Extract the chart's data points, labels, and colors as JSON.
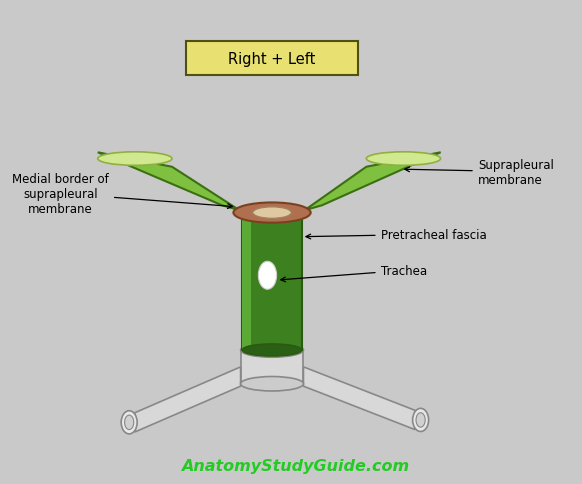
{
  "bg_color": "#c9c9c9",
  "title_box_color": "#e8e070",
  "title_text": "Right + Left",
  "trachea_green": "#3d8020",
  "trachea_light_green": "#5aaa35",
  "trachea_dark_green": "#2a5a10",
  "membrane_green": "#80c040",
  "membrane_light_green": "#a8d860",
  "membrane_top_light": "#d0e890",
  "top_ring_brown": "#b07050",
  "top_ring_cream": "#e0c8a0",
  "bronchi_fill": "#d8d8d8",
  "bronchi_edge": "#888888",
  "bronchi_inner": "#e8e8e8",
  "label_medial": "Medial border of\nsuprapleural\nmembrane",
  "label_suprapleural": "Suprapleural\nmembrane",
  "label_pretracheal": "Pretracheal fascia",
  "label_trachea": "Trachea",
  "watermark": "AnatomyStudyGuide.com",
  "watermark_color": "#22cc22"
}
